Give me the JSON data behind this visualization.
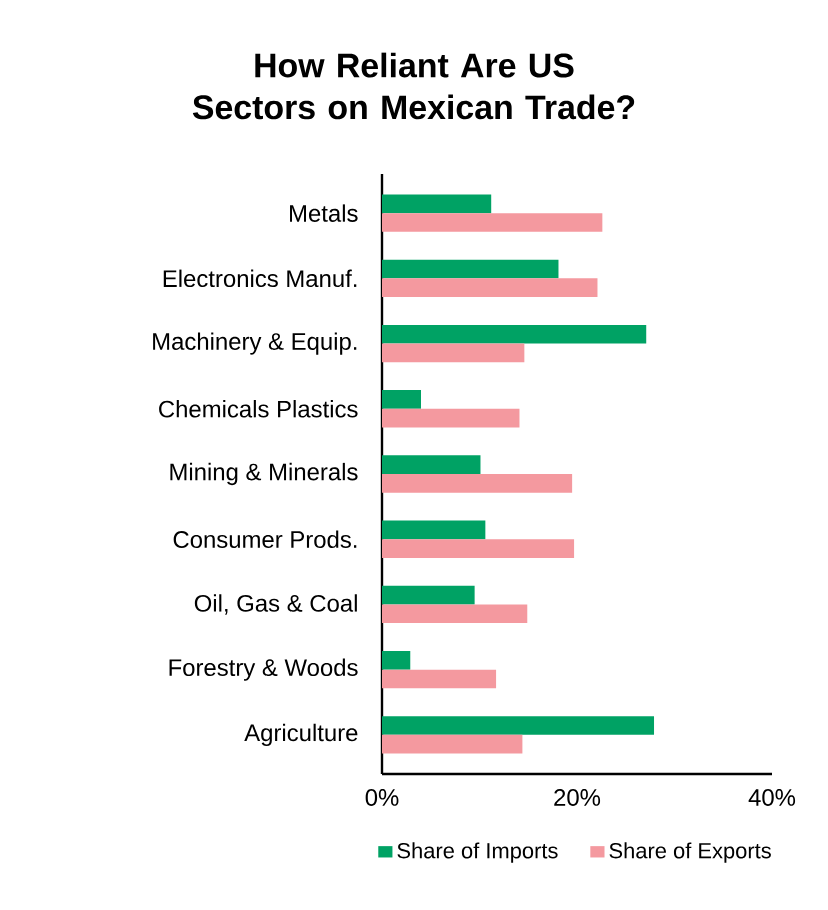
{
  "chart_data": {
    "type": "bar",
    "orientation": "horizontal",
    "title": "How Reliant Are US Sectors on Mexican Trade?",
    "categories": [
      "Metals",
      "Electronics Manuf.",
      "Machinery & Equip.",
      "Chemicals Plastics",
      "Mining & Minerals",
      "Consumer Prods.",
      "Oil, Gas & Coal",
      "Forestry & Woods",
      "Agriculture"
    ],
    "series": [
      {
        "name": "Share of Imports",
        "color": "#00a264",
        "values": [
          11.2,
          18.1,
          27.1,
          4.0,
          10.1,
          10.6,
          9.5,
          2.9,
          27.9
        ]
      },
      {
        "name": "Share of Exports",
        "color": "#f4999f",
        "values": [
          22.6,
          22.1,
          14.6,
          14.1,
          19.5,
          19.7,
          14.9,
          11.7,
          14.4
        ]
      }
    ],
    "xlim": [
      0,
      40
    ],
    "xticks": [
      {
        "value": 0,
        "label": "0%"
      },
      {
        "value": 20,
        "label": "20%"
      },
      {
        "value": 40,
        "label": "40%"
      }
    ],
    "grid": false,
    "legend": "bottom"
  }
}
